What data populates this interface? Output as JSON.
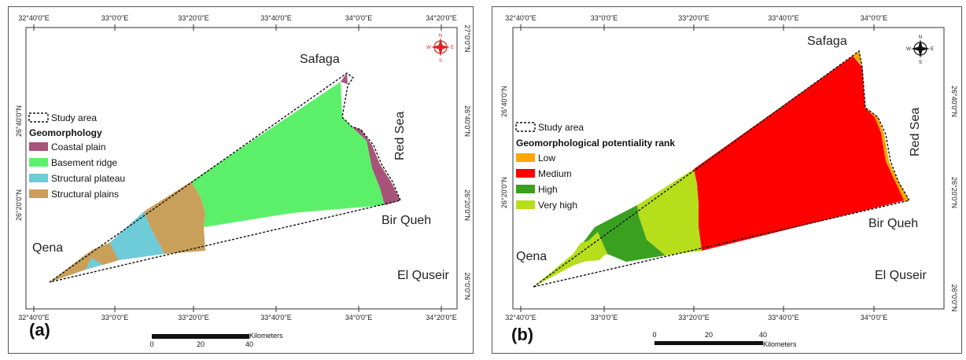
{
  "panel_a": {
    "label": "(a)",
    "top_ticks": [
      "32°40'0\"E",
      "33°0'0\"E",
      "33°20'0\"E",
      "33°40'0\"E",
      "34°0'0\"E",
      "34°20'0\"E"
    ],
    "bottom_ticks": [
      "32°40'0\"E",
      "33°0'0\"E",
      "33°20'0\"E",
      "33°40'0\"E",
      "34°0'0\"E",
      "34°20'0\"E"
    ],
    "left_ticks": [
      "26°40'0\"N",
      "26°20'0\"N"
    ],
    "right_ticks": [
      "27°0'0\"N",
      "26°40'0\"N",
      "26°20'0\"N",
      "26°0'0\"N"
    ],
    "places": {
      "safaga": "Safaga",
      "red_sea": "Red Sea",
      "bir_queh": "Bir Queh",
      "qena": "Qena",
      "el_quseir": "El Quseir"
    },
    "legend": {
      "study_area": "Study area",
      "title": "Geomorphology",
      "items": [
        {
          "label": "Coastal plain",
          "color": "#a8547a"
        },
        {
          "label": "Basement ridge",
          "color": "#5cf06a"
        },
        {
          "label": "Structural plateau",
          "color": "#6ecbd8"
        },
        {
          "label": "Structural plains",
          "color": "#c9a05a"
        }
      ]
    },
    "scale": {
      "unit": "Kilometers",
      "ticks": [
        "0",
        "20",
        "40"
      ]
    },
    "compass": {
      "n": "N",
      "s": "S",
      "e": "E",
      "w": "W"
    }
  },
  "panel_b": {
    "label": "(b)",
    "top_ticks": [
      "32°40'0\"E",
      "33°0'0\"E",
      "33°20'0\"E",
      "33°40'0\"E",
      "34°0'0\"E"
    ],
    "bottom_ticks": [
      "32°40'0\"E",
      "33°0'0\"E",
      "33°20'0\"E",
      "33°40'0\"E",
      "34°0'0\"E"
    ],
    "left_ticks": [
      "26°40'0\"N",
      "26°20'0\"N"
    ],
    "right_ticks": [
      "26°40'0\"N",
      "26°20'0\"N",
      "26°0'0\"N"
    ],
    "places": {
      "safaga": "Safaga",
      "red_sea": "Red Sea",
      "bir_queh": "Bir Queh",
      "qena": "Qena",
      "el_quseir": "El Quseir"
    },
    "legend": {
      "study_area": "Study area",
      "title": "Geomorphological potentiality rank",
      "items": [
        {
          "label": "Low",
          "color": "#ffa500"
        },
        {
          "label": "Medium",
          "color": "#ff0000"
        },
        {
          "label": "High",
          "color": "#3aa020"
        },
        {
          "label": "Very high",
          "color": "#b6de1a"
        }
      ]
    },
    "scale": {
      "unit": "Kilometers",
      "ticks": [
        "0",
        "20",
        "40"
      ]
    },
    "compass": {
      "n": "N",
      "s": "S",
      "e": "E",
      "w": "W"
    }
  }
}
